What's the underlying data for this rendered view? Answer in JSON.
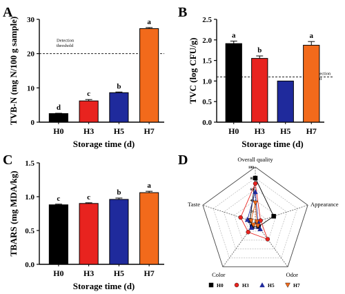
{
  "chart_data": [
    {
      "panel": "A",
      "type": "bar",
      "categories": [
        "H0",
        "H3",
        "H5",
        "H7"
      ],
      "values": [
        2.5,
        6.2,
        8.6,
        27.3
      ],
      "errors": [
        0.1,
        0.4,
        0.2,
        0.3
      ],
      "letters": [
        "d",
        "c",
        "b",
        "a"
      ],
      "colors": [
        "#000000",
        "#e8231f",
        "#1f2a9c",
        "#f26a1b"
      ],
      "xlabel": "Storage time (d)",
      "ylabel": "TVB-N (mg N/100 g sample)",
      "ylim": [
        0,
        30
      ],
      "yticks": [
        0,
        10,
        20,
        30
      ],
      "threshold": {
        "value": 20,
        "label_line1": "Detection",
        "label_line2": "threshold"
      }
    },
    {
      "panel": "B",
      "type": "bar",
      "categories": [
        "H0",
        "H3",
        "H5",
        "H7"
      ],
      "values": [
        1.91,
        1.55,
        1.0,
        1.87
      ],
      "errors": [
        0.06,
        0.06,
        0.0,
        0.09
      ],
      "letters": [
        "a",
        "b",
        "",
        "a"
      ],
      "colors": [
        "#000000",
        "#e8231f",
        "#1f2a9c",
        "#f26a1b"
      ],
      "xlabel": "Storage time (d)",
      "ylabel": "TVC (log CFU/g)",
      "ylim": [
        0,
        2.5
      ],
      "yticks": [
        0,
        0.5,
        1.0,
        1.5,
        2.0,
        2.5
      ],
      "threshold": {
        "value": 1.1,
        "label_line1": "Detection",
        "label_line2": "limit"
      }
    },
    {
      "panel": "C",
      "type": "bar",
      "categories": [
        "H0",
        "H3",
        "H5",
        "H7"
      ],
      "values": [
        0.88,
        0.9,
        0.96,
        1.06
      ],
      "errors": [
        0.01,
        0.01,
        0.02,
        0.02
      ],
      "letters": [
        "c",
        "c",
        "b",
        "a"
      ],
      "colors": [
        "#000000",
        "#e8231f",
        "#1f2a9c",
        "#f26a1b"
      ],
      "xlabel": "Storage time (d)",
      "ylabel": "TBARS (mg MDA/kg)",
      "ylim": [
        0,
        1.5
      ],
      "yticks": [
        0.0,
        0.5,
        1.0,
        1.5
      ]
    },
    {
      "panel": "D",
      "type": "radar",
      "axes": [
        "Overall quality",
        "Appearance",
        "Odor",
        "Color",
        "Taste"
      ],
      "rlim": [
        0,
        100
      ],
      "rticks": [
        20,
        40,
        60,
        80,
        100
      ],
      "series": [
        {
          "name": "H0",
          "marker": "square",
          "color": "#000000",
          "values": [
            80,
            35,
            10,
            10,
            10
          ]
        },
        {
          "name": "H3",
          "marker": "circle",
          "color": "#e8231f",
          "values": [
            70,
            10,
            38,
            22,
            28
          ]
        },
        {
          "name": "H5",
          "marker": "triangle-up",
          "color": "#1f2a9c",
          "values": [
            55,
            5,
            15,
            12,
            15
          ]
        },
        {
          "name": "H7",
          "marker": "triangle-down",
          "color": "#f26a1b",
          "values": [
            35,
            3,
            8,
            6,
            8
          ]
        }
      ]
    }
  ],
  "panel_letters": [
    "A",
    "B",
    "C",
    "D"
  ]
}
